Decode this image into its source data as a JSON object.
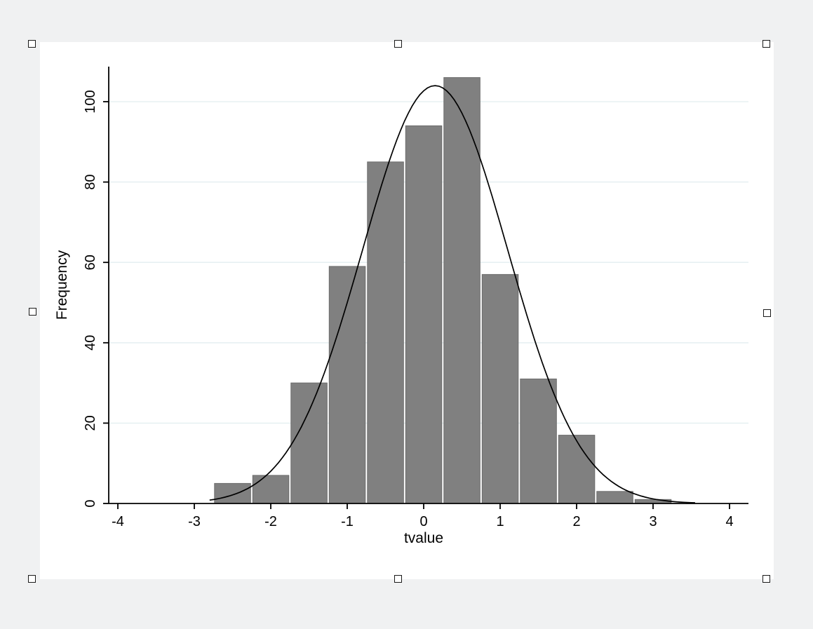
{
  "page": {
    "background": "#f0f1f2"
  },
  "graph": {
    "canvas_background": "#ffffff",
    "selected": true,
    "handle_count": 8
  },
  "chart_data": {
    "type": "histogram",
    "title": "",
    "xlabel": "tvalue",
    "ylabel": "Frequency",
    "x_ticks": [
      -4,
      -3,
      -2,
      -1,
      0,
      1,
      2,
      3,
      4
    ],
    "y_ticks": [
      0,
      20,
      40,
      60,
      80,
      100
    ],
    "xlim": [
      -4.12,
      4.25
    ],
    "ylim": [
      0,
      109
    ],
    "grid": true,
    "legend": "none",
    "bin_width": 0.5,
    "bin_centers": [
      -2.5,
      -2.0,
      -1.5,
      -1.0,
      -0.5,
      0.0,
      0.5,
      1.0,
      1.5,
      2.0,
      2.5,
      3.0
    ],
    "frequencies": [
      5,
      7,
      30,
      59,
      85,
      94,
      106,
      57,
      31,
      17,
      3,
      1
    ],
    "normal_curve": {
      "mean": 0.15,
      "sd": 0.95,
      "peak": 104,
      "x_start": -2.8,
      "x_end": 3.55
    },
    "colors": {
      "bar_fill": "#808080",
      "bar_edge": "#6b6b6b",
      "curve": "#000000",
      "grid": "#e7f0f2",
      "axis": "#000000",
      "text": "#000000"
    }
  }
}
